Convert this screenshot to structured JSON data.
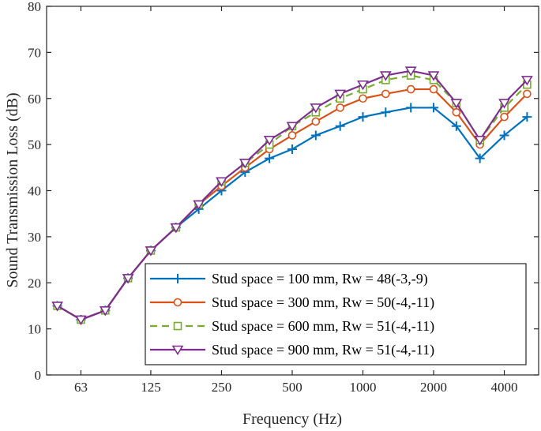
{
  "chart_data": {
    "type": "line",
    "title": "",
    "xlabel": "Frequency (Hz)",
    "ylabel": "Sound  Transmission  Loss (dB)",
    "x_scale": "log2",
    "ylim": [
      0,
      80
    ],
    "yticks": [
      0,
      10,
      20,
      30,
      40,
      50,
      60,
      70,
      80
    ],
    "xticks": [
      {
        "label": "63",
        "value": 63
      },
      {
        "label": "125",
        "value": 125
      },
      {
        "label": "250",
        "value": 250
      },
      {
        "label": "500",
        "value": 500
      },
      {
        "label": "1000",
        "value": 1000
      },
      {
        "label": "2000",
        "value": 2000
      },
      {
        "label": "4000",
        "value": 4000
      }
    ],
    "x": [
      50,
      63,
      80,
      100,
      125,
      160,
      200,
      250,
      315,
      400,
      500,
      630,
      800,
      1000,
      1250,
      1600,
      2000,
      2500,
      3150,
      4000,
      5000
    ],
    "legend_position": "lower-right",
    "grid": false,
    "series": [
      {
        "name": "Stud space = 100 mm, Rw = 48(-3,-9)",
        "color": "#0072BD",
        "marker": "plus",
        "dash": "",
        "values": [
          15,
          12,
          14,
          21,
          27,
          32,
          36,
          40,
          44,
          47,
          49,
          52,
          54,
          56,
          57,
          58,
          58,
          54,
          47,
          52,
          56
        ]
      },
      {
        "name": "Stud space = 300 mm, Rw = 50(-4,-11)",
        "color": "#D95319",
        "marker": "circle",
        "dash": "",
        "values": [
          15,
          12,
          14,
          21,
          27,
          32,
          37,
          41,
          45,
          49,
          52,
          55,
          58,
          60,
          61,
          62,
          62,
          57,
          50,
          56,
          61
        ]
      },
      {
        "name": "Stud space = 600 mm, Rw = 51(-4,-11)",
        "color": "#77AC30",
        "marker": "square",
        "dash": "9,6",
        "values": [
          15,
          12,
          14,
          21,
          27,
          32,
          37,
          42,
          46,
          50,
          54,
          57,
          60,
          62,
          64,
          65,
          64,
          59,
          51,
          58,
          63
        ]
      },
      {
        "name": "Stud space = 900 mm, Rw = 51(-4,-11)",
        "color": "#7E2F8E",
        "marker": "triangle-down",
        "dash": "",
        "values": [
          15,
          12,
          14,
          21,
          27,
          32,
          37,
          42,
          46,
          51,
          54,
          58,
          61,
          63,
          65,
          66,
          65,
          59,
          51,
          59,
          64
        ]
      }
    ]
  }
}
